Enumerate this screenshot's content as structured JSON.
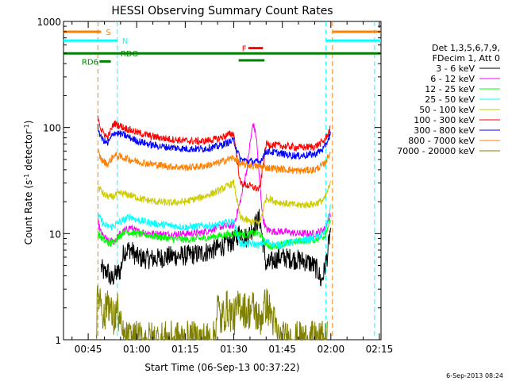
{
  "chart_data": {
    "type": "line",
    "title": "HESSI Observing Summary Count Rates",
    "xlabel": "Start Time (06-Sep-13 00:37:22)",
    "ylabel_main": "Count Rate (s",
    "ylabel_sup1": "-1",
    "ylabel_mid": " detector",
    "ylabel_sup2": "-1",
    "ylabel_end": ")",
    "yscale": "log",
    "ylim": [
      1,
      1000
    ],
    "xlim_minutes": [
      37.37,
      135.5
    ],
    "x_ticks": [
      {
        "t": 45,
        "label": "00:45"
      },
      {
        "t": 60,
        "label": "01:00"
      },
      {
        "t": 75,
        "label": "01:15"
      },
      {
        "t": 90,
        "label": "01:30"
      },
      {
        "t": 105,
        "label": "01:45"
      },
      {
        "t": 120,
        "label": "02:00"
      },
      {
        "t": 135,
        "label": "02:15"
      }
    ],
    "y_major_ticks": [
      {
        "v": 1,
        "label": "1"
      },
      {
        "v": 10,
        "label": "10"
      },
      {
        "v": 100,
        "label": "100"
      },
      {
        "v": 1000,
        "label": "1000"
      }
    ],
    "legend": {
      "header_lines": [
        "Det 1,3,5,6,7,9,",
        "FDecim 1, Att 0"
      ],
      "position": "right"
    },
    "series": [
      {
        "name": "3 - 6 keV",
        "color": "#000000",
        "points": [
          [
            49,
            4.8
          ],
          [
            50,
            4.2
          ],
          [
            51,
            4.5
          ],
          [
            52,
            3.6
          ],
          [
            53,
            4.0
          ],
          [
            55,
            4.5
          ],
          [
            56,
            6.8
          ],
          [
            58,
            7.2
          ],
          [
            60,
            6.0
          ],
          [
            63,
            5.8
          ],
          [
            66,
            5.8
          ],
          [
            70,
            6.1
          ],
          [
            75,
            6.2
          ],
          [
            80,
            6.5
          ],
          [
            85,
            7.3
          ],
          [
            88,
            8.0
          ],
          [
            90,
            8.5
          ],
          [
            92,
            10.5
          ],
          [
            94,
            9.0
          ],
          [
            96,
            11.5
          ],
          [
            98,
            14.0
          ],
          [
            100,
            5.0
          ],
          [
            102,
            5.5
          ],
          [
            104,
            6.0
          ],
          [
            108,
            5.8
          ],
          [
            112,
            5.5
          ],
          [
            114,
            5.2
          ],
          [
            116,
            4.5
          ],
          [
            117,
            3.5
          ],
          [
            118,
            4.5
          ],
          [
            119,
            6.5
          ],
          [
            120,
            12.0
          ]
        ]
      },
      {
        "name": "6 - 12 keV",
        "color": "#ff00ff",
        "points": [
          [
            48,
            13.0
          ],
          [
            49,
            10.0
          ],
          [
            51,
            8.5
          ],
          [
            53,
            8.5
          ],
          [
            55,
            10.0
          ],
          [
            58,
            11.5
          ],
          [
            60,
            10.5
          ],
          [
            65,
            10.0
          ],
          [
            70,
            9.8
          ],
          [
            75,
            10.0
          ],
          [
            80,
            10.2
          ],
          [
            85,
            11.5
          ],
          [
            90,
            12.0
          ],
          [
            92,
            20.0
          ],
          [
            94,
            40.0
          ],
          [
            95,
            70.0
          ],
          [
            96,
            110.0
          ],
          [
            97,
            80.0
          ],
          [
            98,
            30.0
          ],
          [
            99,
            14.0
          ],
          [
            100,
            11.0
          ],
          [
            102,
            10.5
          ],
          [
            105,
            10.5
          ],
          [
            110,
            10.0
          ],
          [
            115,
            10.0
          ],
          [
            118,
            11.0
          ],
          [
            120,
            16.0
          ]
        ]
      },
      {
        "name": "12 - 25 keV",
        "color": "#00ff00",
        "points": [
          [
            48,
            10.0
          ],
          [
            50,
            8.5
          ],
          [
            52,
            8.0
          ],
          [
            54,
            9.0
          ],
          [
            56,
            10.5
          ],
          [
            60,
            10.0
          ],
          [
            65,
            9.5
          ],
          [
            70,
            9.0
          ],
          [
            75,
            8.8
          ],
          [
            80,
            9.0
          ],
          [
            85,
            9.5
          ],
          [
            90,
            10.0
          ],
          [
            92,
            10.0
          ],
          [
            94,
            9.8
          ],
          [
            96,
            10.0
          ],
          [
            98,
            10.0
          ],
          [
            100,
            8.0
          ],
          [
            102,
            7.5
          ],
          [
            105,
            8.0
          ],
          [
            110,
            8.5
          ],
          [
            115,
            8.8
          ],
          [
            118,
            9.5
          ],
          [
            120,
            14.0
          ]
        ]
      },
      {
        "name": "25 - 50 keV",
        "color": "#00ffff",
        "points": [
          [
            48,
            15.0
          ],
          [
            50,
            12.0
          ],
          [
            52,
            11.5
          ],
          [
            55,
            13.0
          ],
          [
            58,
            14.5
          ],
          [
            60,
            13.5
          ],
          [
            65,
            12.5
          ],
          [
            70,
            12.0
          ],
          [
            75,
            11.5
          ],
          [
            80,
            11.8
          ],
          [
            85,
            12.0
          ],
          [
            88,
            12.8
          ],
          [
            90,
            13.0
          ],
          [
            92,
            8.0
          ],
          [
            95,
            8.0
          ],
          [
            98,
            7.8
          ],
          [
            100,
            8.5
          ],
          [
            103,
            7.8
          ],
          [
            105,
            8.0
          ],
          [
            110,
            8.5
          ],
          [
            115,
            9.0
          ],
          [
            118,
            10.0
          ],
          [
            120,
            18.0
          ]
        ]
      },
      {
        "name": "50 - 100 keV",
        "color": "#cccc00",
        "points": [
          [
            48,
            28.0
          ],
          [
            50,
            23.0
          ],
          [
            52,
            22.0
          ],
          [
            55,
            24.0
          ],
          [
            58,
            23.0
          ],
          [
            62,
            21.0
          ],
          [
            66,
            20.0
          ],
          [
            70,
            19.5
          ],
          [
            75,
            20.0
          ],
          [
            80,
            22.0
          ],
          [
            85,
            25.0
          ],
          [
            88,
            28.0
          ],
          [
            90,
            30.0
          ],
          [
            92,
            14.0
          ],
          [
            95,
            13.0
          ],
          [
            98,
            12.5
          ],
          [
            100,
            22.0
          ],
          [
            103,
            20.0
          ],
          [
            107,
            19.0
          ],
          [
            110,
            18.5
          ],
          [
            115,
            19.0
          ],
          [
            118,
            21.0
          ],
          [
            120,
            30.0
          ]
        ]
      },
      {
        "name": "100 - 300 keV",
        "color": "#ff0000",
        "points": [
          [
            48,
            130.0
          ],
          [
            49,
            95.0
          ],
          [
            51,
            80.0
          ],
          [
            53,
            110.0
          ],
          [
            56,
            100.0
          ],
          [
            60,
            90.0
          ],
          [
            65,
            82.0
          ],
          [
            70,
            78.0
          ],
          [
            75,
            75.0
          ],
          [
            80,
            74.0
          ],
          [
            85,
            78.0
          ],
          [
            88,
            85.0
          ],
          [
            90,
            88.0
          ],
          [
            92,
            30.0
          ],
          [
            95,
            28.0
          ],
          [
            98,
            26.0
          ],
          [
            100,
            70.0
          ],
          [
            103,
            68.0
          ],
          [
            107,
            66.0
          ],
          [
            110,
            65.0
          ],
          [
            115,
            66.0
          ],
          [
            118,
            75.0
          ],
          [
            120,
            100.0
          ]
        ]
      },
      {
        "name": "300 - 800 keV",
        "color": "#0000ff",
        "points": [
          [
            48,
            100.0
          ],
          [
            49,
            80.0
          ],
          [
            51,
            70.0
          ],
          [
            53,
            90.0
          ],
          [
            56,
            85.0
          ],
          [
            60,
            75.0
          ],
          [
            65,
            68.0
          ],
          [
            70,
            65.0
          ],
          [
            75,
            63.0
          ],
          [
            80,
            63.0
          ],
          [
            85,
            66.0
          ],
          [
            88,
            72.0
          ],
          [
            90,
            75.0
          ],
          [
            92,
            50.0
          ],
          [
            95,
            48.0
          ],
          [
            98,
            47.0
          ],
          [
            100,
            60.0
          ],
          [
            103,
            58.0
          ],
          [
            107,
            55.0
          ],
          [
            110,
            54.0
          ],
          [
            115,
            56.0
          ],
          [
            118,
            64.0
          ],
          [
            120,
            90.0
          ]
        ]
      },
      {
        "name": "800 - 7000 keV",
        "color": "#ff8000",
        "points": [
          [
            48,
            60.0
          ],
          [
            49,
            50.0
          ],
          [
            51,
            45.0
          ],
          [
            53,
            55.0
          ],
          [
            56,
            52.0
          ],
          [
            60,
            48.0
          ],
          [
            65,
            45.0
          ],
          [
            70,
            43.0
          ],
          [
            75,
            42.0
          ],
          [
            80,
            43.0
          ],
          [
            85,
            46.0
          ],
          [
            88,
            50.0
          ],
          [
            90,
            52.0
          ],
          [
            92,
            45.0
          ],
          [
            95,
            44.0
          ],
          [
            98,
            43.0
          ],
          [
            100,
            42.0
          ],
          [
            103,
            41.0
          ],
          [
            107,
            40.0
          ],
          [
            110,
            39.0
          ],
          [
            115,
            40.0
          ],
          [
            118,
            45.0
          ],
          [
            120,
            60.0
          ]
        ]
      },
      {
        "name": "7000 - 20000 keV",
        "color": "#808000",
        "points": [
          [
            47.5,
            1.2
          ],
          [
            48,
            2.8
          ],
          [
            49,
            2.4
          ],
          [
            50,
            1.5
          ],
          [
            51,
            2.6
          ],
          [
            52,
            1.8
          ],
          [
            53,
            1.5
          ],
          [
            54,
            2.0
          ],
          [
            55,
            1.3
          ],
          [
            56,
            1.0
          ],
          [
            70,
            1.0
          ],
          [
            84,
            1.0
          ],
          [
            85,
            2.2
          ],
          [
            86,
            1.5
          ],
          [
            88,
            2.0
          ],
          [
            90,
            1.6
          ],
          [
            92,
            2.2
          ],
          [
            94,
            1.8
          ],
          [
            96,
            2.0
          ],
          [
            98,
            1.5
          ],
          [
            100,
            2.2
          ],
          [
            102,
            1.6
          ],
          [
            104,
            1.0
          ],
          [
            119,
            1.0
          ]
        ]
      }
    ],
    "flags": [
      {
        "label": "S",
        "color": "#ff8000",
        "y_level": 800,
        "segments": [
          [
            37.37,
            49.0
          ],
          [
            120.5,
            135.5
          ]
        ],
        "label_at": 50.5
      },
      {
        "label": "N",
        "color": "#00ffff",
        "y_level": 660,
        "segments": [
          [
            37.37,
            54.0
          ],
          [
            118.5,
            135.5
          ]
        ],
        "label_at": 55.5
      },
      {
        "label": "RDO",
        "color": "#008000",
        "y_level": 500,
        "segments": [
          [
            37.37,
            135.5
          ]
        ],
        "label_at": 55.0
      },
      {
        "label": "RD6",
        "color": "#008000",
        "y_level": 420,
        "segments": [
          [
            48.5,
            52.0
          ]
        ],
        "label_at": 43.0
      },
      {
        "label": "F",
        "color": "#ff0000",
        "y_level": 560,
        "segments": [
          [
            94.5,
            99.0
          ]
        ],
        "label_at": 92.5
      },
      {
        "label": "",
        "color": "#008000",
        "y_level": 430,
        "segments": [
          [
            91.5,
            99.5
          ]
        ],
        "label_at": 0
      }
    ],
    "vertical_lines": [
      {
        "t": 48.0,
        "color": "#ff8000"
      },
      {
        "t": 54.0,
        "color": "#00ffff"
      },
      {
        "t": 118.5,
        "color": "#00ffff"
      },
      {
        "t": 120.5,
        "color": "#ff8000"
      },
      {
        "t": 133.5,
        "color": "#00ffff"
      }
    ],
    "footer_date": "6-Sep-2013 08:24"
  }
}
